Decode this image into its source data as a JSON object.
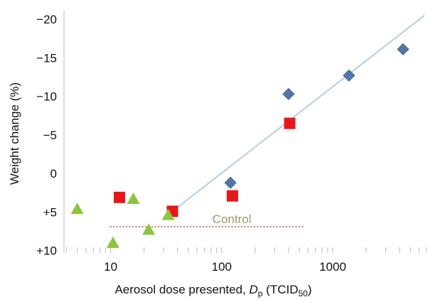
{
  "chart_data": {
    "type": "scatter",
    "xlabel": {
      "prefix": "Aerosol dose presented, ",
      "symbol": "D",
      "symbol_sub": "p",
      "unit_open": " (TCID",
      "unit_sub": "50",
      "unit_close": ")"
    },
    "ylabel": "Weight change (%)",
    "x_scale": "log",
    "xlim": [
      3.8,
      7000
    ],
    "ylim": [
      10.3,
      -21.2
    ],
    "x_ticks": [
      {
        "value": 10,
        "label": "10"
      },
      {
        "value": 100,
        "label": "100"
      },
      {
        "value": 1000,
        "label": "1000"
      }
    ],
    "y_ticks": [
      {
        "value": -20,
        "label": "−20"
      },
      {
        "value": -15,
        "label": "−15"
      },
      {
        "value": -10,
        "label": "−10"
      },
      {
        "value": -5,
        "label": "−5"
      },
      {
        "value": 0,
        "label": "0"
      },
      {
        "value": 5,
        "label": "+5"
      },
      {
        "value": 10,
        "label": "+10"
      }
    ],
    "series": [
      {
        "marker": "diamond",
        "color": "#4f77a8",
        "points": [
          [
            120,
            1.2
          ],
          [
            400,
            -10.3
          ],
          [
            1400,
            -12.7
          ],
          [
            4300,
            -16.1
          ]
        ]
      },
      {
        "marker": "square",
        "color": "#e8151b",
        "points": [
          [
            12,
            3.1
          ],
          [
            36,
            4.9
          ],
          [
            125,
            2.9
          ],
          [
            410,
            -6.5
          ]
        ]
      },
      {
        "marker": "triangle",
        "color": "#8cc63f",
        "points": [
          [
            5,
            4.6
          ],
          [
            10.5,
            9.0
          ],
          [
            16,
            3.3
          ],
          [
            22,
            7.3
          ],
          [
            33,
            5.4
          ]
        ]
      }
    ],
    "trendline": {
      "color": "#b7cde3",
      "from": [
        36,
        4.9
      ],
      "to": [
        6700,
        -20.5
      ]
    },
    "control": {
      "label": "Control",
      "y": 6.9,
      "x_from": 9.8,
      "x_to": 560,
      "line_color": "#c0504d",
      "label_color": "#9c9a6a"
    }
  }
}
